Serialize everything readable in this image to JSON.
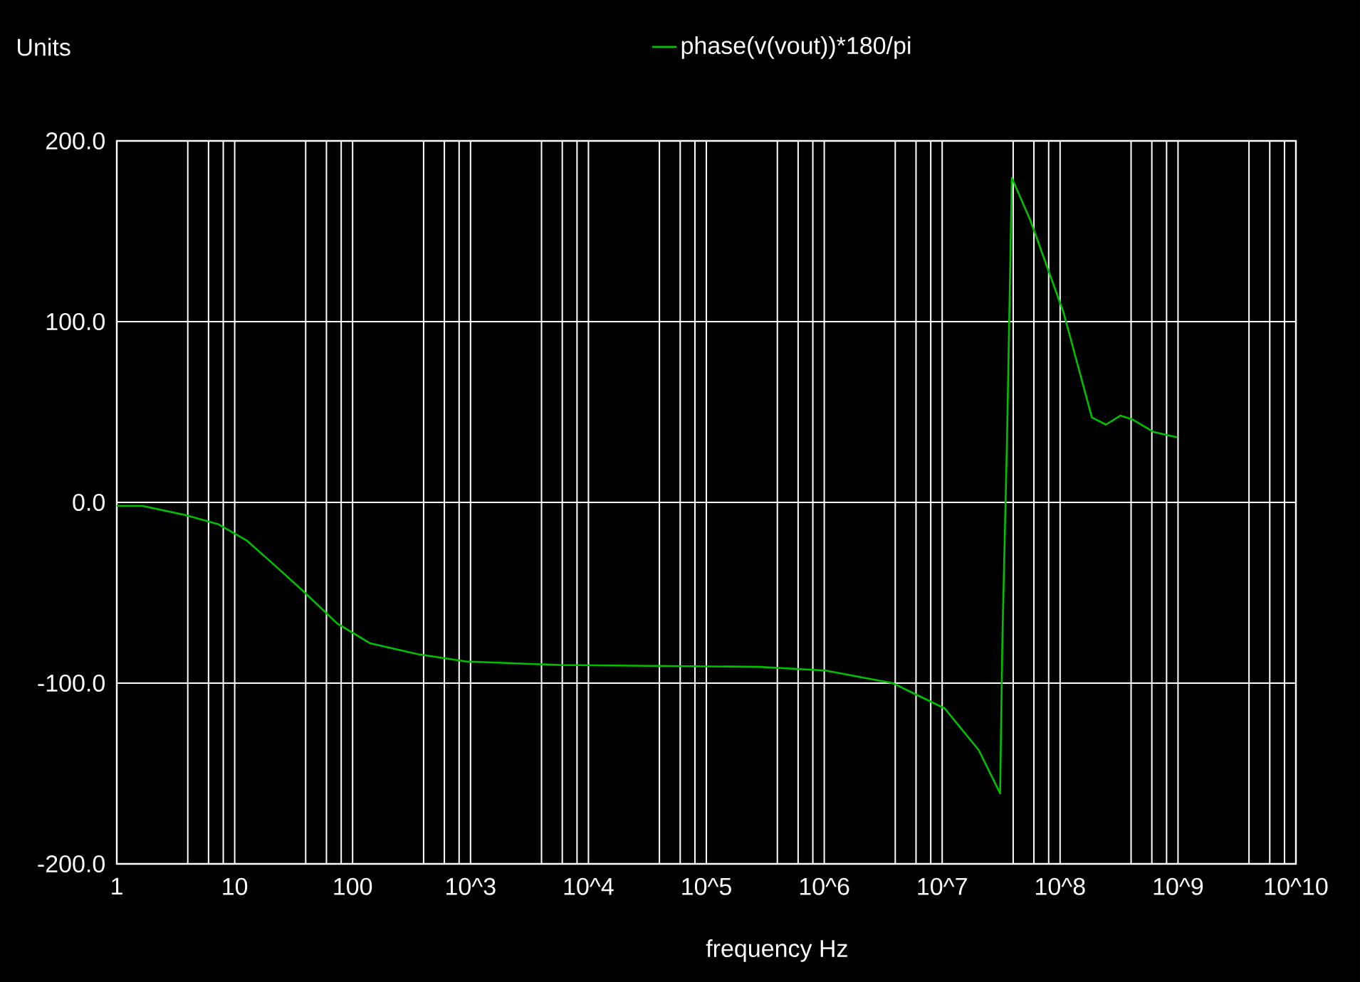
{
  "chart_data": {
    "type": "line",
    "ylabel": "Units",
    "xlabel": "frequency Hz",
    "x": [
      1,
      1.66,
      3.8,
      7.2,
      12.6,
      22,
      38,
      74,
      141,
      355,
      910,
      5750,
      280000,
      1020000,
      3800000,
      10500000,
      20400000,
      31000000,
      32400000,
      35500000,
      39000000,
      56000000,
      107000000,
      186000000,
      245000000,
      324000000,
      407000000,
      620000000,
      980000000
    ],
    "series": [
      {
        "name": "phase(v(vout))*180/pi",
        "color": "#00c000",
        "values": [
          -2,
          -2,
          -7,
          -12,
          -21,
          -35,
          -49,
          -67,
          -78,
          -84,
          -88,
          -90,
          -91,
          -93,
          -100,
          -114,
          -137,
          -161,
          -76,
          36,
          179.5,
          156,
          105,
          47,
          43,
          48,
          46,
          39,
          36
        ]
      }
    ],
    "log": "x",
    "grid": true,
    "legend": "top",
    "marker": "none",
    "line_style": "solid",
    "xlim": [
      1,
      10000000000
    ],
    "ylim": [
      -200,
      200
    ],
    "xticks": [
      1,
      {
        "value": 4,
        "label": null
      },
      {
        "value": 6,
        "label": null
      },
      {
        "value": 8,
        "label": null
      },
      10,
      {
        "value": 40,
        "label": null
      },
      {
        "value": 60,
        "label": null
      },
      {
        "value": 80,
        "label": null
      },
      100,
      {
        "value": 400,
        "label": null
      },
      {
        "value": 600,
        "label": null
      },
      {
        "value": 800,
        "label": null
      },
      {
        "value": 1000,
        "label": "10^3"
      },
      {
        "value": 4000,
        "label": null
      },
      {
        "value": 6000,
        "label": null
      },
      {
        "value": 8000,
        "label": null
      },
      {
        "value": 10000,
        "label": "10^4"
      },
      {
        "value": 40000,
        "label": null
      },
      {
        "value": 60000,
        "label": null
      },
      {
        "value": 80000,
        "label": null
      },
      {
        "value": 100000,
        "label": "10^5"
      },
      {
        "value": 400000,
        "label": null
      },
      {
        "value": 600000,
        "label": null
      },
      {
        "value": 800000,
        "label": null
      },
      {
        "value": 1000000,
        "label": "10^6"
      },
      {
        "value": 4000000,
        "label": null
      },
      {
        "value": 6000000,
        "label": null
      },
      {
        "value": 8000000,
        "label": null
      },
      {
        "value": 10000000,
        "label": "10^7"
      },
      {
        "value": 40000000,
        "label": null
      },
      {
        "value": 60000000,
        "label": null
      },
      {
        "value": 80000000,
        "label": null
      },
      {
        "value": 100000000,
        "label": "10^8"
      },
      {
        "value": 400000000,
        "label": null
      },
      {
        "value": 600000000,
        "label": null
      },
      {
        "value": 800000000,
        "label": null
      },
      {
        "value": 1000000000,
        "label": "10^9"
      },
      {
        "value": 4000000000,
        "label": null
      },
      {
        "value": 6000000000,
        "label": null
      },
      {
        "value": 8000000000,
        "label": null
      },
      {
        "value": 10000000000,
        "label": "10^10"
      }
    ],
    "yticks": [
      {
        "value": -200,
        "label": "-200.0"
      },
      {
        "value": -100,
        "label": "-100.0"
      },
      {
        "value": 0,
        "label": "0.0"
      },
      {
        "value": 100,
        "label": "100.0"
      },
      {
        "value": 200,
        "label": "200.0"
      }
    ]
  }
}
